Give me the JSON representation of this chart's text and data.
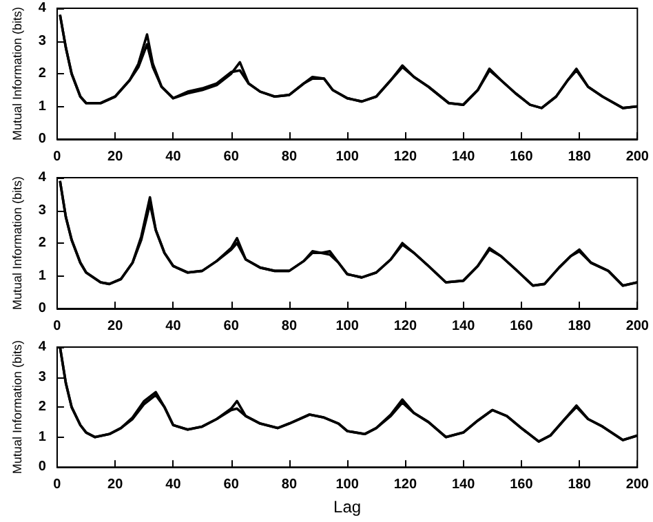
{
  "chart_data": [
    {
      "type": "line",
      "ylabel": "Mutual Information (bits)",
      "x": [
        1,
        3,
        5,
        8,
        10,
        15,
        20,
        25,
        28,
        31,
        33,
        36,
        40,
        45,
        50,
        55,
        60,
        63,
        66,
        70,
        75,
        80,
        85,
        88,
        92,
        95,
        100,
        105,
        110,
        115,
        119,
        123,
        128,
        135,
        140,
        145,
        149,
        153,
        158,
        163,
        167,
        172,
        176,
        179,
        183,
        188,
        195,
        200
      ],
      "series": [
        {
          "color": "#000000",
          "values": [
            3.8,
            2.8,
            2.0,
            1.3,
            1.1,
            1.1,
            1.3,
            1.8,
            2.3,
            3.2,
            2.3,
            1.6,
            1.25,
            1.4,
            1.5,
            1.65,
            2.0,
            2.35,
            1.7,
            1.45,
            1.3,
            1.35,
            1.7,
            1.9,
            1.85,
            1.5,
            1.25,
            1.15,
            1.3,
            1.8,
            2.25,
            1.9,
            1.6,
            1.1,
            1.05,
            1.5,
            2.15,
            1.8,
            1.4,
            1.05,
            0.95,
            1.3,
            1.8,
            2.15,
            1.6,
            1.3,
            0.95,
            1.0
          ]
        },
        {
          "color": "#000000",
          "values": [
            3.8,
            2.8,
            2.0,
            1.3,
            1.1,
            1.1,
            1.3,
            1.8,
            2.2,
            2.9,
            2.2,
            1.6,
            1.25,
            1.45,
            1.55,
            1.7,
            2.05,
            2.1,
            1.7,
            1.45,
            1.3,
            1.35,
            1.7,
            1.85,
            1.85,
            1.5,
            1.25,
            1.15,
            1.3,
            1.8,
            2.2,
            1.9,
            1.6,
            1.1,
            1.05,
            1.5,
            2.1,
            1.8,
            1.4,
            1.05,
            0.95,
            1.3,
            1.8,
            2.1,
            1.6,
            1.3,
            0.95,
            1.0
          ]
        }
      ],
      "xlim": [
        0,
        200
      ],
      "ylim": [
        0,
        4
      ],
      "xticks": [
        0,
        20,
        40,
        60,
        80,
        100,
        120,
        140,
        160,
        180,
        200
      ],
      "yticks": [
        0,
        1,
        2,
        3,
        4
      ],
      "marker": "none"
    },
    {
      "type": "line",
      "ylabel": "Mutual Information (bits)",
      "x": [
        1,
        3,
        5,
        8,
        10,
        15,
        18,
        22,
        26,
        29,
        32,
        34,
        37,
        40,
        45,
        50,
        55,
        60,
        62,
        65,
        70,
        75,
        80,
        85,
        88,
        91,
        94,
        97,
        100,
        105,
        110,
        115,
        119,
        123,
        128,
        134,
        140,
        145,
        149,
        153,
        158,
        164,
        168,
        173,
        177,
        180,
        184,
        190,
        195,
        200
      ],
      "series": [
        {
          "color": "#000000",
          "values": [
            3.9,
            2.8,
            2.1,
            1.4,
            1.1,
            0.8,
            0.75,
            0.9,
            1.4,
            2.2,
            3.4,
            2.4,
            1.7,
            1.3,
            1.1,
            1.15,
            1.45,
            1.85,
            2.15,
            1.5,
            1.25,
            1.15,
            1.15,
            1.45,
            1.75,
            1.7,
            1.75,
            1.4,
            1.05,
            0.95,
            1.1,
            1.5,
            2.0,
            1.7,
            1.3,
            0.8,
            0.85,
            1.3,
            1.85,
            1.6,
            1.2,
            0.7,
            0.75,
            1.25,
            1.6,
            1.8,
            1.4,
            1.15,
            0.7,
            0.8
          ]
        },
        {
          "color": "#000000",
          "values": [
            3.9,
            2.8,
            2.1,
            1.4,
            1.1,
            0.8,
            0.75,
            0.9,
            1.4,
            2.1,
            3.2,
            2.4,
            1.7,
            1.3,
            1.1,
            1.15,
            1.45,
            1.8,
            2.0,
            1.5,
            1.25,
            1.15,
            1.15,
            1.45,
            1.7,
            1.7,
            1.65,
            1.4,
            1.05,
            0.95,
            1.1,
            1.5,
            1.95,
            1.7,
            1.3,
            0.8,
            0.85,
            1.3,
            1.8,
            1.6,
            1.2,
            0.7,
            0.75,
            1.25,
            1.6,
            1.75,
            1.4,
            1.15,
            0.7,
            0.8
          ]
        }
      ],
      "xlim": [
        0,
        200
      ],
      "ylim": [
        0,
        4
      ],
      "xticks": [
        0,
        20,
        40,
        60,
        80,
        100,
        120,
        140,
        160,
        180,
        200
      ],
      "yticks": [
        0,
        1,
        2,
        3,
        4
      ],
      "marker": "none"
    },
    {
      "type": "line",
      "xlabel": "Lag",
      "ylabel": "Mutual Information (bits)",
      "x": [
        1,
        3,
        5,
        8,
        10,
        13,
        18,
        22,
        26,
        30,
        34,
        37,
        40,
        45,
        50,
        55,
        60,
        62,
        65,
        70,
        76,
        80,
        87,
        92,
        97,
        100,
        106,
        110,
        115,
        119,
        123,
        128,
        134,
        140,
        145,
        150,
        155,
        160,
        166,
        170,
        175,
        179,
        183,
        188,
        195,
        200
      ],
      "series": [
        {
          "color": "#000000",
          "values": [
            4.0,
            2.8,
            2.0,
            1.4,
            1.15,
            1.0,
            1.1,
            1.3,
            1.65,
            2.2,
            2.5,
            2.0,
            1.4,
            1.25,
            1.35,
            1.6,
            1.95,
            2.2,
            1.7,
            1.45,
            1.3,
            1.45,
            1.75,
            1.65,
            1.45,
            1.2,
            1.1,
            1.3,
            1.75,
            2.25,
            1.8,
            1.5,
            1.0,
            1.15,
            1.55,
            1.9,
            1.7,
            1.3,
            0.85,
            1.05,
            1.6,
            2.05,
            1.6,
            1.35,
            0.9,
            1.05
          ]
        },
        {
          "color": "#000000",
          "values": [
            4.0,
            2.8,
            2.0,
            1.4,
            1.15,
            1.0,
            1.1,
            1.3,
            1.6,
            2.1,
            2.4,
            2.0,
            1.4,
            1.25,
            1.35,
            1.6,
            1.9,
            1.95,
            1.7,
            1.45,
            1.3,
            1.45,
            1.75,
            1.65,
            1.45,
            1.2,
            1.1,
            1.3,
            1.7,
            2.15,
            1.8,
            1.5,
            1.0,
            1.15,
            1.55,
            1.9,
            1.7,
            1.3,
            0.85,
            1.05,
            1.6,
            2.0,
            1.6,
            1.35,
            0.9,
            1.05
          ]
        }
      ],
      "xlim": [
        0,
        200
      ],
      "ylim": [
        0,
        4
      ],
      "xticks": [
        0,
        20,
        40,
        60,
        80,
        100,
        120,
        140,
        160,
        180,
        200
      ],
      "yticks": [
        0,
        1,
        2,
        3,
        4
      ],
      "marker": "none"
    }
  ]
}
